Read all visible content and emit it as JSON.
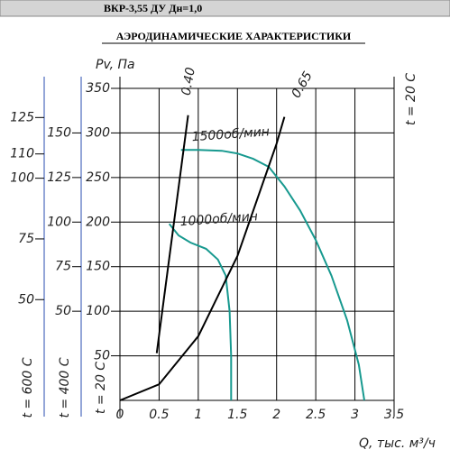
{
  "header": {
    "title": "ВКР-3,55 ДУ Дн=1,0"
  },
  "chart_data": {
    "type": "line",
    "title": "АЭРОДИНАМИЧЕСКИЕ ХАРАКТЕРИСТИКИ",
    "ylabel": "Pv, Па",
    "xlabel": "Q, тыс. м³/ч",
    "axis_label": "t = 20 C",
    "xlim": [
      0,
      3.5
    ],
    "xticks": [
      0,
      0.5,
      1,
      1.5,
      2,
      2.5,
      3,
      3.5
    ],
    "ylim": [
      0,
      350
    ],
    "yticks": [
      50,
      100,
      150,
      200,
      250,
      300,
      350
    ],
    "grid": true,
    "extra_axes": [
      {
        "label": "t = 400 C",
        "ylim": [
          0,
          175
        ],
        "yticks": [
          50,
          75,
          100,
          125,
          150
        ]
      },
      {
        "label": "t = 600 C",
        "ylim": [
          8.5,
          137
        ],
        "yticks": [
          50,
          75,
          100,
          110,
          125
        ]
      }
    ],
    "series": [
      {
        "name": "1500об/мин",
        "color": "#17998f",
        "x": [
          0.78,
          1.0,
          1.3,
          1.5,
          1.7,
          1.9,
          2.1,
          2.3,
          2.5,
          2.7,
          2.9,
          3.05,
          3.12
        ],
        "values": [
          281,
          281,
          280,
          277,
          271,
          262,
          240,
          213,
          180,
          140,
          90,
          40,
          0
        ]
      },
      {
        "name": "1000об/мин",
        "color": "#17998f",
        "x": [
          0.63,
          0.75,
          0.9,
          1.1,
          1.25,
          1.35,
          1.4,
          1.42,
          1.42
        ],
        "values": [
          198,
          185,
          177,
          170,
          158,
          140,
          100,
          50,
          0
        ]
      },
      {
        "name": "0.40",
        "color": "#000000",
        "x": [
          0.47,
          0.87
        ],
        "values": [
          53,
          320
        ]
      },
      {
        "name": "0.65",
        "color": "#000000",
        "x": [
          0,
          0.5,
          1,
          1.5,
          2,
          2.1
        ],
        "values": [
          0,
          18,
          72,
          162,
          288,
          318
        ]
      }
    ]
  }
}
